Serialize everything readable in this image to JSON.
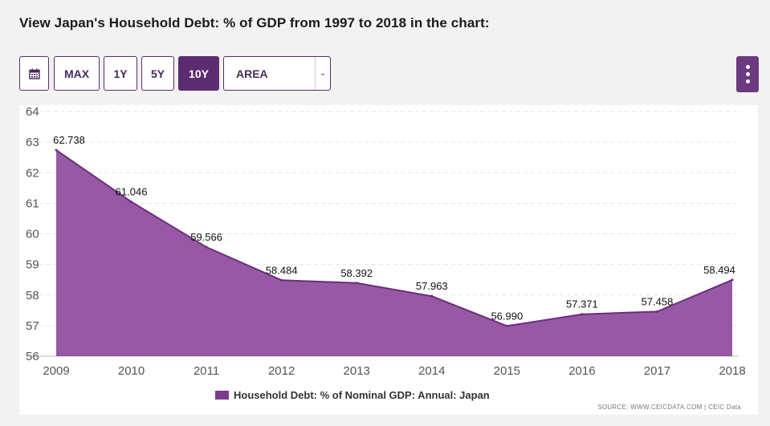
{
  "page": {
    "title": "View Japan's Household Debt: % of GDP from 1997 to 2018 in the chart:"
  },
  "toolbar": {
    "calendar_icon": "calendar-icon",
    "buttons": [
      "MAX",
      "1Y",
      "5Y",
      "10Y"
    ],
    "active_button": "10Y",
    "chart_type_select": "AREA",
    "menu_icon": "vertical-dots-icon"
  },
  "colors": {
    "accent": "#5b2c6f",
    "area_fill": "#8e4a9c",
    "area_line": "#6b2d7e"
  },
  "chart_data": {
    "type": "area",
    "x": [
      "2009",
      "2010",
      "2011",
      "2012",
      "2013",
      "2014",
      "2015",
      "2016",
      "2017",
      "2018"
    ],
    "series": [
      {
        "name": "Household Debt: % of Nominal GDP: Annual: Japan",
        "values": [
          62.738,
          61.046,
          59.566,
          58.484,
          58.392,
          57.963,
          56.99,
          57.371,
          57.458,
          58.494
        ],
        "labels": [
          "62.738",
          "61.046",
          "59.566",
          "58.484",
          "58.392",
          "57.963",
          "56.990",
          "57.371",
          "57.458",
          "58.494"
        ]
      }
    ],
    "yticks": [
      "56",
      "57",
      "58",
      "59",
      "60",
      "61",
      "62",
      "63",
      "64"
    ],
    "ylim": [
      56,
      64
    ],
    "grid": true,
    "legend_position": "bottom"
  },
  "source": "SOURCE: WWW.CEICDATA.COM | CEIC Data"
}
